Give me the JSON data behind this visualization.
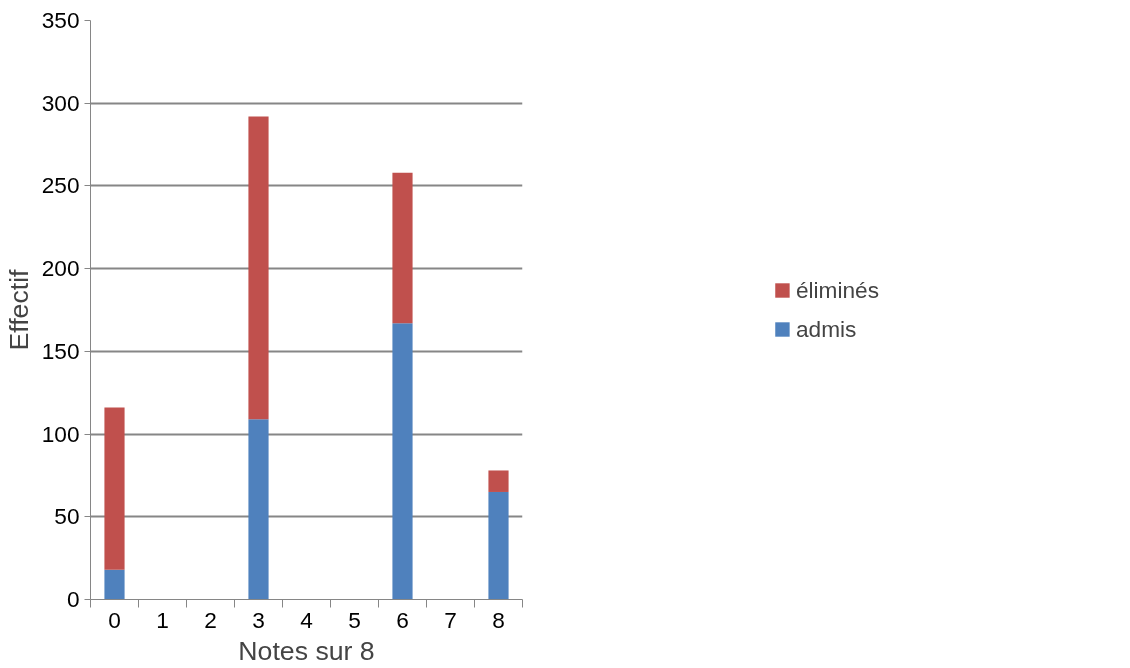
{
  "chart_data": {
    "type": "bar",
    "stacked": true,
    "xlabel": "Notes sur 8",
    "ylabel": "Effectif",
    "categories": [
      "0",
      "1",
      "2",
      "3",
      "4",
      "5",
      "6",
      "7",
      "8"
    ],
    "series": [
      {
        "name": "admis",
        "color": "#4f81bd",
        "values": [
          18,
          0,
          0,
          109,
          0,
          0,
          167,
          0,
          65
        ]
      },
      {
        "name": "éliminés",
        "color": "#c0504d",
        "values": [
          98,
          0,
          0,
          183,
          0,
          0,
          91,
          0,
          13
        ]
      }
    ],
    "ylim": [
      0,
      350
    ],
    "yticks": [
      0,
      50,
      100,
      150,
      200,
      250,
      300,
      350
    ],
    "grid": "y",
    "legend": "right"
  }
}
